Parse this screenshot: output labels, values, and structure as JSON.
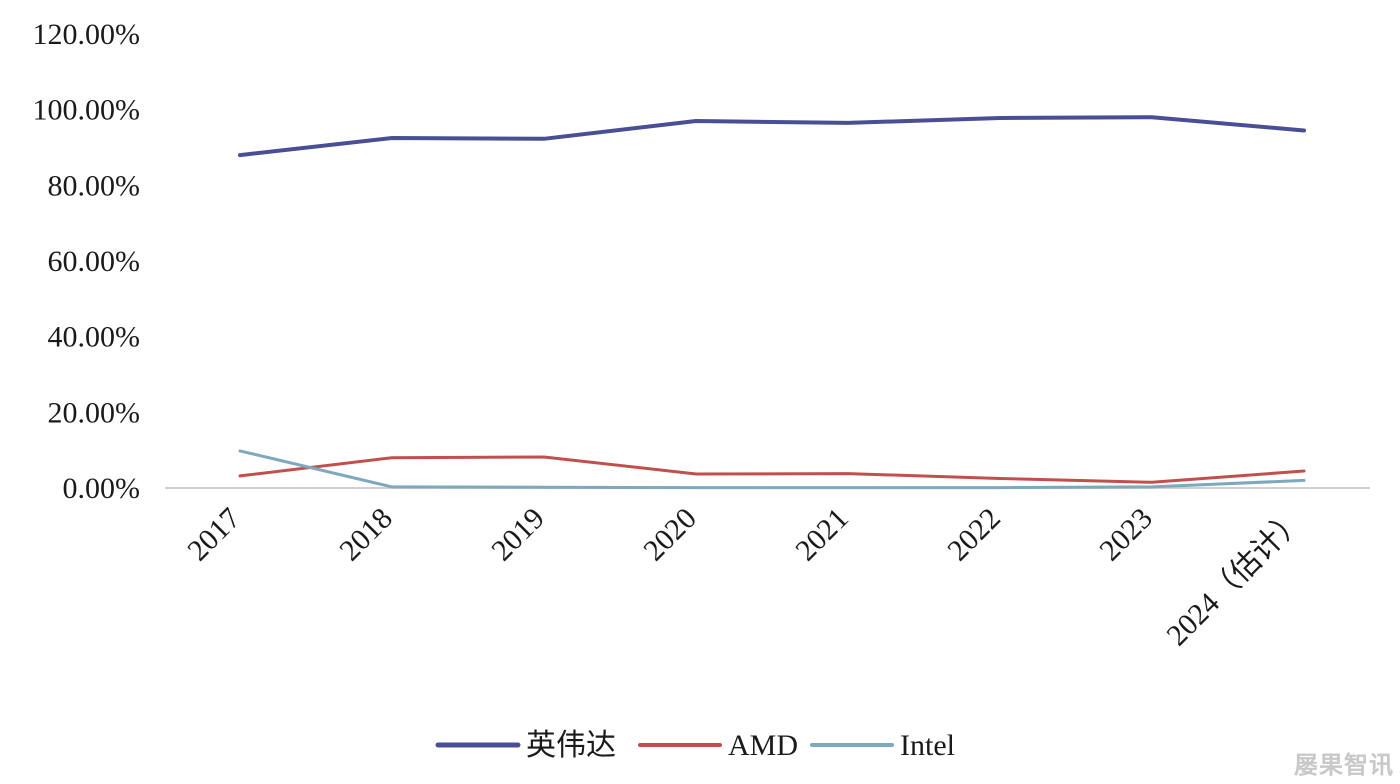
{
  "chart_data": {
    "type": "line",
    "categories": [
      "2017",
      "2018",
      "2019",
      "2020",
      "2021",
      "2022",
      "2023",
      "2024（估计）"
    ],
    "series": [
      {
        "name": "英伟达",
        "color": "#4a4e94",
        "values": [
          88,
          92.5,
          92.3,
          97,
          96.5,
          97.8,
          98,
          94.5
        ]
      },
      {
        "name": "AMD",
        "color": "#c0504d",
        "values": [
          3.2,
          8,
          8.2,
          3.7,
          3.8,
          2.5,
          1.5,
          4.5
        ]
      },
      {
        "name": "Intel",
        "color": "#7ea9bd",
        "values": [
          9.8,
          0.3,
          0.2,
          0.1,
          0.1,
          0.1,
          0.3,
          2
        ]
      }
    ],
    "y_ticks": [
      "0.00%",
      "20.00%",
      "40.00%",
      "60.00%",
      "80.00%",
      "100.00%",
      "120.00%"
    ],
    "ylim": [
      0,
      120
    ],
    "grid": false,
    "legend": "bottom"
  },
  "watermark": "屡果智讯"
}
